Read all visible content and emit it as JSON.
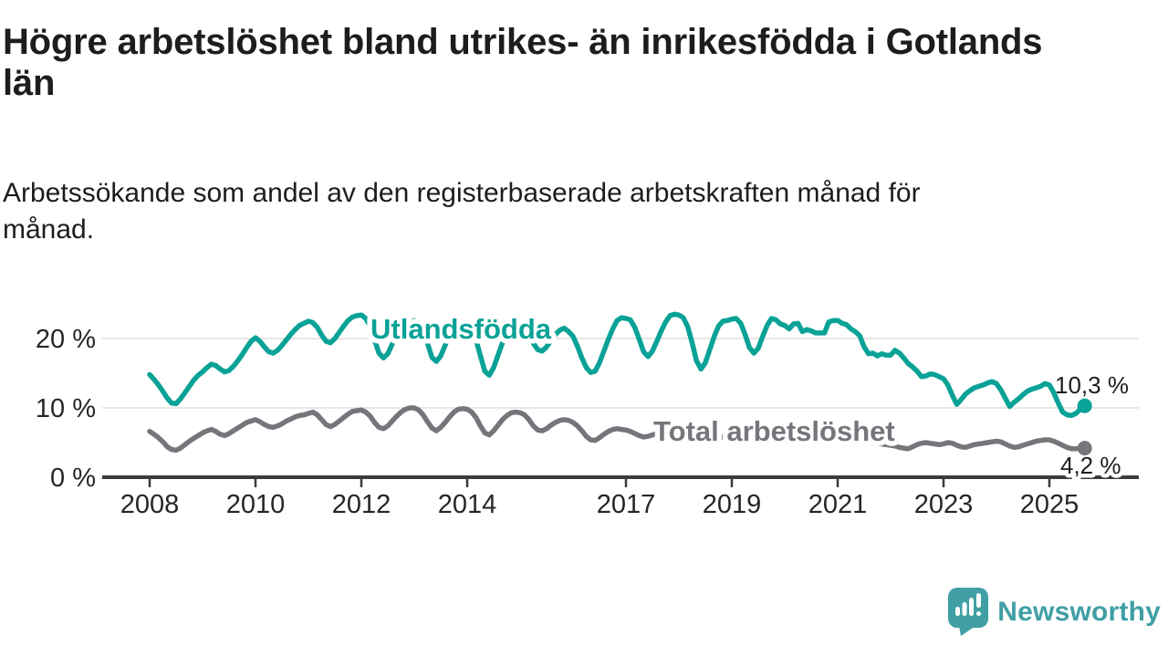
{
  "title": "Högre arbetslöshet bland utrikes- än inrikesfödda i Gotlands län",
  "subtitle": "Arbetssökande som andel av den registerbaserade arbetskraften månad för månad.",
  "branding": {
    "name": "Newsworthy",
    "color": "#3f9fa4"
  },
  "chart_data": {
    "type": "line",
    "title": "Högre arbetslöshet bland utrikes- än inrikesfödda i Gotlands län",
    "subtitle": "Arbetssökande som andel av den registerbaserade arbetskraften månad för månad.",
    "x_unit": "month",
    "x_start": "2008-01",
    "x_end": "2025-09",
    "ylim": [
      0,
      25
    ],
    "grid_values": [
      10,
      20
    ],
    "grid": true,
    "legend_position": "inline-labels",
    "y_ticks": [
      {
        "value": 0,
        "label": "0 %"
      },
      {
        "value": 10,
        "label": "10 %"
      },
      {
        "value": 20,
        "label": "20 %"
      }
    ],
    "x_ticks": [
      {
        "year": 2008,
        "label": "2008"
      },
      {
        "year": 2010,
        "label": "2010"
      },
      {
        "year": 2012,
        "label": "2012"
      },
      {
        "year": 2014,
        "label": "2014"
      },
      {
        "year": 2017,
        "label": "2017"
      },
      {
        "year": 2019,
        "label": "2019"
      },
      {
        "year": 2021,
        "label": "2021"
      },
      {
        "year": 2023,
        "label": "2023"
      },
      {
        "year": 2025,
        "label": "2025"
      }
    ],
    "series": [
      {
        "name": "Utlandsfödda",
        "color": "#0aa296",
        "last_value_label": "10,3 %",
        "values": [
          14.8,
          14.1,
          13.3,
          12.4,
          11.4,
          10.7,
          10.6,
          11.3,
          12.2,
          13.1,
          14.0,
          14.7,
          15.2,
          15.8,
          16.3,
          16.1,
          15.6,
          15.2,
          15.4,
          16.0,
          16.8,
          17.7,
          18.7,
          19.6,
          20.1,
          19.6,
          18.8,
          18.1,
          17.9,
          18.3,
          19.0,
          19.8,
          20.6,
          21.3,
          21.9,
          22.2,
          22.5,
          22.3,
          21.6,
          20.5,
          19.6,
          19.4,
          20.0,
          20.9,
          21.8,
          22.6,
          23.1,
          23.3,
          23.4,
          22.9,
          21.8,
          19.8,
          17.9,
          17.2,
          17.8,
          19.2,
          20.6,
          21.6,
          22.1,
          22.3,
          22.6,
          22.4,
          21.3,
          19.3,
          17.3,
          16.7,
          17.5,
          19.0,
          20.5,
          21.5,
          22.1,
          22.2,
          21.8,
          21.2,
          19.8,
          17.5,
          15.3,
          14.7,
          15.8,
          17.6,
          19.4,
          20.8,
          21.8,
          22.0,
          21.6,
          21.2,
          20.4,
          19.3,
          18.4,
          18.2,
          18.8,
          19.7,
          20.6,
          21.2,
          21.5,
          21.0,
          20.3,
          18.9,
          17.2,
          15.8,
          15.1,
          15.3,
          16.5,
          18.2,
          19.9,
          21.4,
          22.6,
          23.0,
          22.9,
          22.7,
          21.6,
          19.9,
          18.1,
          17.4,
          18.2,
          19.6,
          21.1,
          22.4,
          23.3,
          23.5,
          23.4,
          23.0,
          21.7,
          19.4,
          16.8,
          15.6,
          16.5,
          18.4,
          20.3,
          21.8,
          22.5,
          22.6,
          22.8,
          22.9,
          22.2,
          20.6,
          18.7,
          17.9,
          18.6,
          20.3,
          21.9,
          22.9,
          22.7,
          22.1,
          21.9,
          21.4,
          22.1,
          22.2,
          21.0,
          21.3,
          21.1,
          20.8,
          20.8,
          20.8,
          22.4,
          22.6,
          22.6,
          22.2,
          22.0,
          21.4,
          21.0,
          20.4,
          18.8,
          17.8,
          17.9,
          17.5,
          17.8,
          17.6,
          17.6,
          18.3,
          17.9,
          17.2,
          16.4,
          15.9,
          15.3,
          14.5,
          14.6,
          14.9,
          14.8,
          14.5,
          14.2,
          13.3,
          11.8,
          10.5,
          11.2,
          12.0,
          12.5,
          12.9,
          13.1,
          13.3,
          13.6,
          13.8,
          13.5,
          12.6,
          11.4,
          10.2,
          10.8,
          11.3,
          11.9,
          12.4,
          12.7,
          12.9,
          13.1,
          13.5,
          13.3,
          12.2,
          10.7,
          9.4,
          9.0,
          8.9,
          9.2,
          9.8,
          10.3
        ]
      },
      {
        "name": "Total arbetslöshet",
        "color": "#75757b",
        "last_value_label": "4,2 %",
        "values": [
          6.6,
          6.2,
          5.7,
          5.1,
          4.4,
          4.0,
          3.9,
          4.2,
          4.7,
          5.2,
          5.6,
          6.0,
          6.4,
          6.7,
          6.9,
          6.6,
          6.2,
          6.0,
          6.3,
          6.7,
          7.1,
          7.5,
          7.9,
          8.1,
          8.3,
          8.0,
          7.6,
          7.3,
          7.2,
          7.4,
          7.7,
          8.1,
          8.4,
          8.7,
          8.9,
          9.0,
          9.2,
          9.4,
          9.0,
          8.3,
          7.6,
          7.3,
          7.6,
          8.1,
          8.6,
          9.1,
          9.5,
          9.6,
          9.7,
          9.4,
          8.8,
          7.9,
          7.2,
          7.0,
          7.4,
          8.1,
          8.8,
          9.4,
          9.8,
          10.0,
          10.0,
          9.7,
          9.0,
          8.0,
          7.1,
          6.7,
          7.2,
          7.9,
          8.7,
          9.4,
          9.8,
          9.9,
          9.8,
          9.4,
          8.6,
          7.4,
          6.4,
          6.1,
          6.7,
          7.5,
          8.3,
          8.9,
          9.3,
          9.4,
          9.3,
          9.0,
          8.3,
          7.4,
          6.8,
          6.7,
          7.0,
          7.5,
          7.9,
          8.2,
          8.3,
          8.2,
          7.9,
          7.4,
          6.7,
          5.9,
          5.4,
          5.3,
          5.7,
          6.2,
          6.6,
          6.9,
          7.0,
          6.9,
          6.8,
          6.6,
          6.3,
          6.0,
          5.8,
          5.9,
          6.1,
          6.3,
          6.4,
          6.4,
          6.3,
          6.2,
          6.1,
          6.0,
          5.8,
          5.5,
          5.2,
          5.0,
          5.2,
          5.4,
          5.6,
          5.7,
          5.8,
          5.8,
          5.9,
          5.9,
          5.8,
          5.6,
          5.4,
          5.3,
          5.5,
          5.7,
          5.9,
          6.0,
          6.1,
          6.1,
          6.2,
          6.2,
          6.5,
          6.8,
          6.9,
          7.0,
          7.0,
          6.9,
          6.8,
          6.7,
          6.7,
          6.6,
          6.5,
          6.4,
          6.2,
          6.0,
          5.8,
          5.6,
          5.4,
          5.2,
          5.0,
          4.9,
          4.8,
          4.7,
          4.6,
          4.5,
          4.3,
          4.2,
          4.1,
          4.4,
          4.7,
          4.9,
          5.0,
          4.9,
          4.8,
          4.7,
          4.8,
          5.0,
          4.9,
          4.6,
          4.4,
          4.3,
          4.5,
          4.7,
          4.8,
          4.9,
          5.0,
          5.1,
          5.2,
          5.1,
          4.8,
          4.5,
          4.3,
          4.4,
          4.6,
          4.8,
          5.0,
          5.2,
          5.3,
          5.4,
          5.4,
          5.2,
          4.9,
          4.6,
          4.3,
          4.1,
          4.1,
          4.2,
          4.2
        ]
      }
    ]
  }
}
